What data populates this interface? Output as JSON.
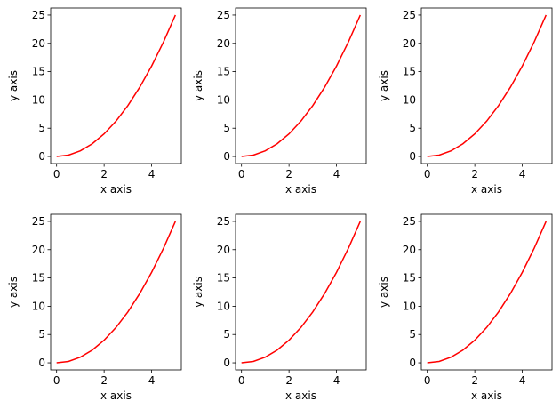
{
  "chart_data": [
    {
      "type": "line",
      "x_label": "x axis",
      "y_label": "y axis",
      "x": [
        0,
        0.5,
        1,
        1.5,
        2,
        2.5,
        3,
        3.5,
        4,
        4.5,
        5
      ],
      "series": [
        {
          "color": "#ff0000",
          "values": [
            0,
            0.25,
            1,
            2.25,
            4,
            6.25,
            9,
            12.25,
            16,
            20.25,
            25
          ]
        }
      ],
      "xlim": [
        -0.25,
        5.25
      ],
      "ylim": [
        -1.25,
        26.25
      ],
      "xticks": [
        0,
        2,
        4
      ],
      "yticks": [
        0,
        5,
        10,
        15,
        20,
        25
      ]
    },
    {
      "type": "line",
      "x_label": "x axis",
      "y_label": "y axis",
      "x": [
        0,
        0.5,
        1,
        1.5,
        2,
        2.5,
        3,
        3.5,
        4,
        4.5,
        5
      ],
      "series": [
        {
          "color": "#ff0000",
          "values": [
            0,
            0.25,
            1,
            2.25,
            4,
            6.25,
            9,
            12.25,
            16,
            20.25,
            25
          ]
        }
      ],
      "xlim": [
        -0.25,
        5.25
      ],
      "ylim": [
        -1.25,
        26.25
      ],
      "xticks": [
        0,
        2,
        4
      ],
      "yticks": [
        0,
        5,
        10,
        15,
        20,
        25
      ]
    },
    {
      "type": "line",
      "x_label": "x axis",
      "y_label": "y axis",
      "x": [
        0,
        0.5,
        1,
        1.5,
        2,
        2.5,
        3,
        3.5,
        4,
        4.5,
        5
      ],
      "series": [
        {
          "color": "#ff0000",
          "values": [
            0,
            0.25,
            1,
            2.25,
            4,
            6.25,
            9,
            12.25,
            16,
            20.25,
            25
          ]
        }
      ],
      "xlim": [
        -0.25,
        5.25
      ],
      "ylim": [
        -1.25,
        26.25
      ],
      "xticks": [
        0,
        2,
        4
      ],
      "yticks": [
        0,
        5,
        10,
        15,
        20,
        25
      ]
    },
    {
      "type": "line",
      "x_label": "x axis",
      "y_label": "y axis",
      "x": [
        0,
        0.5,
        1,
        1.5,
        2,
        2.5,
        3,
        3.5,
        4,
        4.5,
        5
      ],
      "series": [
        {
          "color": "#ff0000",
          "values": [
            0,
            0.25,
            1,
            2.25,
            4,
            6.25,
            9,
            12.25,
            16,
            20.25,
            25
          ]
        }
      ],
      "xlim": [
        -0.25,
        5.25
      ],
      "ylim": [
        -1.25,
        26.25
      ],
      "xticks": [
        0,
        2,
        4
      ],
      "yticks": [
        0,
        5,
        10,
        15,
        20,
        25
      ]
    },
    {
      "type": "line",
      "x_label": "x axis",
      "y_label": "y axis",
      "x": [
        0,
        0.5,
        1,
        1.5,
        2,
        2.5,
        3,
        3.5,
        4,
        4.5,
        5
      ],
      "series": [
        {
          "color": "#ff0000",
          "values": [
            0,
            0.25,
            1,
            2.25,
            4,
            6.25,
            9,
            12.25,
            16,
            20.25,
            25
          ]
        }
      ],
      "xlim": [
        -0.25,
        5.25
      ],
      "ylim": [
        -1.25,
        26.25
      ],
      "xticks": [
        0,
        2,
        4
      ],
      "yticks": [
        0,
        5,
        10,
        15,
        20,
        25
      ]
    },
    {
      "type": "line",
      "x_label": "x axis",
      "y_label": "y axis",
      "x": [
        0,
        0.5,
        1,
        1.5,
        2,
        2.5,
        3,
        3.5,
        4,
        4.5,
        5
      ],
      "series": [
        {
          "color": "#ff0000",
          "values": [
            0,
            0.25,
            1,
            2.25,
            4,
            6.25,
            9,
            12.25,
            16,
            20.25,
            25
          ]
        }
      ],
      "xlim": [
        -0.25,
        5.25
      ],
      "ylim": [
        -1.25,
        26.25
      ],
      "xticks": [
        0,
        2,
        4
      ],
      "yticks": [
        0,
        5,
        10,
        15,
        20,
        25
      ]
    }
  ]
}
